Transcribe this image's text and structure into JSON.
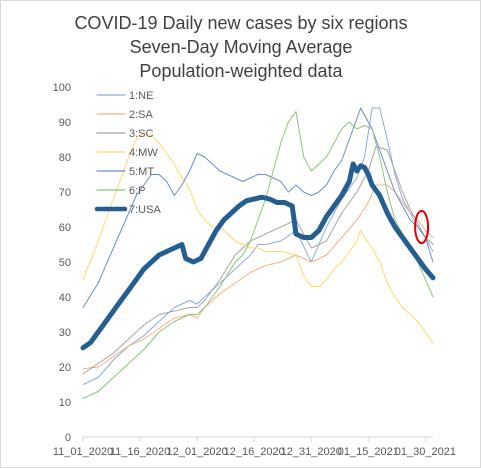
{
  "chart_data": {
    "type": "line",
    "title_lines": [
      "COVID-19 Daily new cases by six regions",
      "Seven-Day Moving Average",
      "Population-weighted data"
    ],
    "x_tick_labels": [
      "11_01_2020",
      "11_16_2020",
      "12_01_2020",
      "12_16_2020",
      "12_31_2020",
      "01_15_2021",
      "01_30_2021"
    ],
    "x_tick_days": [
      0,
      15,
      30,
      45,
      60,
      75,
      90
    ],
    "ylim": [
      0,
      100
    ],
    "y_ticks": [
      0,
      10,
      20,
      30,
      40,
      50,
      60,
      70,
      80,
      90,
      100
    ],
    "grid": false,
    "legend_position": "top-left",
    "series": [
      {
        "name": "1:NE",
        "color": "#8eaadb",
        "width": 1,
        "points": [
          [
            0,
            15
          ],
          [
            4,
            17
          ],
          [
            8,
            22
          ],
          [
            12,
            26
          ],
          [
            16,
            29
          ],
          [
            20,
            33
          ],
          [
            24,
            37
          ],
          [
            28,
            39
          ],
          [
            30,
            38
          ],
          [
            32,
            40
          ],
          [
            36,
            44
          ],
          [
            40,
            48
          ],
          [
            44,
            52
          ],
          [
            46,
            55
          ],
          [
            48,
            55
          ],
          [
            52,
            56
          ],
          [
            56,
            59
          ],
          [
            60,
            50
          ],
          [
            64,
            60
          ],
          [
            68,
            68
          ],
          [
            72,
            74
          ],
          [
            74,
            80
          ],
          [
            76,
            94
          ],
          [
            78,
            94
          ],
          [
            80,
            85
          ],
          [
            82,
            75
          ],
          [
            84,
            68
          ],
          [
            86,
            64
          ],
          [
            88,
            60
          ],
          [
            90,
            57
          ],
          [
            92,
            53
          ]
        ]
      },
      {
        "name": "2:SA",
        "color": "#f4b183",
        "width": 1,
        "points": [
          [
            0,
            19.5
          ],
          [
            4,
            20
          ],
          [
            8,
            23
          ],
          [
            12,
            26
          ],
          [
            16,
            28
          ],
          [
            20,
            31
          ],
          [
            24,
            34
          ],
          [
            28,
            35
          ],
          [
            30,
            34
          ],
          [
            32,
            37
          ],
          [
            36,
            41
          ],
          [
            40,
            44
          ],
          [
            44,
            47
          ],
          [
            48,
            49
          ],
          [
            52,
            50
          ],
          [
            56,
            52
          ],
          [
            60,
            50
          ],
          [
            64,
            52
          ],
          [
            68,
            57
          ],
          [
            72,
            62
          ],
          [
            75,
            67
          ],
          [
            77,
            72
          ],
          [
            80,
            72
          ],
          [
            82,
            70
          ],
          [
            84,
            67
          ],
          [
            86,
            64
          ],
          [
            88,
            62
          ],
          [
            90,
            59
          ],
          [
            92,
            57
          ]
        ]
      },
      {
        "name": "3:SC",
        "color": "#a5a5a5",
        "width": 1,
        "points": [
          [
            0,
            18
          ],
          [
            4,
            21
          ],
          [
            8,
            24
          ],
          [
            12,
            28
          ],
          [
            16,
            32
          ],
          [
            20,
            35
          ],
          [
            24,
            36
          ],
          [
            28,
            37
          ],
          [
            30,
            37
          ],
          [
            32,
            39
          ],
          [
            36,
            45
          ],
          [
            40,
            52
          ],
          [
            44,
            56
          ],
          [
            48,
            58
          ],
          [
            52,
            60
          ],
          [
            56,
            62
          ],
          [
            60,
            54
          ],
          [
            64,
            56
          ],
          [
            68,
            64
          ],
          [
            72,
            70
          ],
          [
            75,
            76
          ],
          [
            77,
            83
          ],
          [
            80,
            82
          ],
          [
            82,
            76
          ],
          [
            84,
            70
          ],
          [
            86,
            65
          ],
          [
            88,
            61
          ],
          [
            90,
            57
          ],
          [
            92,
            55
          ]
        ]
      },
      {
        "name": "4:MW",
        "color": "#ffd966",
        "width": 1,
        "points": [
          [
            0,
            45
          ],
          [
            4,
            56
          ],
          [
            8,
            68
          ],
          [
            12,
            80
          ],
          [
            14,
            85
          ],
          [
            16,
            87
          ],
          [
            18,
            86
          ],
          [
            20,
            84
          ],
          [
            22,
            81
          ],
          [
            24,
            78
          ],
          [
            26,
            74
          ],
          [
            28,
            71
          ],
          [
            30,
            65
          ],
          [
            32,
            62
          ],
          [
            34,
            60
          ],
          [
            36,
            60
          ],
          [
            38,
            58
          ],
          [
            40,
            56
          ],
          [
            42,
            55
          ],
          [
            44,
            54
          ],
          [
            46,
            54
          ],
          [
            48,
            53
          ],
          [
            52,
            53
          ],
          [
            56,
            52
          ],
          [
            58,
            46
          ],
          [
            60,
            43
          ],
          [
            62,
            43
          ],
          [
            64,
            45
          ],
          [
            66,
            48
          ],
          [
            68,
            50
          ],
          [
            70,
            53
          ],
          [
            72,
            56
          ],
          [
            73,
            59
          ],
          [
            74,
            57
          ],
          [
            76,
            54
          ],
          [
            78,
            50
          ],
          [
            80,
            44
          ],
          [
            82,
            40
          ],
          [
            84,
            37
          ],
          [
            86,
            35
          ],
          [
            88,
            33
          ],
          [
            90,
            30
          ],
          [
            92,
            27
          ]
        ]
      },
      {
        "name": "5:MT",
        "color": "#6a8ec9",
        "width": 1,
        "points": [
          [
            0,
            37
          ],
          [
            4,
            44
          ],
          [
            8,
            54
          ],
          [
            12,
            64
          ],
          [
            14,
            69
          ],
          [
            16,
            72
          ],
          [
            18,
            75
          ],
          [
            20,
            75
          ],
          [
            22,
            73
          ],
          [
            24,
            69
          ],
          [
            26,
            72
          ],
          [
            28,
            76
          ],
          [
            30,
            81
          ],
          [
            32,
            80
          ],
          [
            34,
            78
          ],
          [
            36,
            76
          ],
          [
            38,
            75
          ],
          [
            40,
            74
          ],
          [
            42,
            73
          ],
          [
            44,
            74
          ],
          [
            46,
            75
          ],
          [
            48,
            75
          ],
          [
            50,
            74
          ],
          [
            52,
            73
          ],
          [
            54,
            70
          ],
          [
            56,
            72
          ],
          [
            58,
            70
          ],
          [
            60,
            69
          ],
          [
            62,
            70
          ],
          [
            64,
            72
          ],
          [
            66,
            76
          ],
          [
            68,
            79
          ],
          [
            70,
            85
          ],
          [
            72,
            91
          ],
          [
            73,
            94
          ],
          [
            74,
            92
          ],
          [
            76,
            88
          ],
          [
            78,
            82
          ],
          [
            80,
            76
          ],
          [
            82,
            70
          ],
          [
            84,
            66
          ],
          [
            86,
            62
          ],
          [
            88,
            60
          ],
          [
            90,
            57
          ],
          [
            92,
            50
          ]
        ]
      },
      {
        "name": "6:P",
        "color": "#8cc576",
        "width": 1,
        "points": [
          [
            0,
            11
          ],
          [
            4,
            13
          ],
          [
            8,
            17
          ],
          [
            12,
            21
          ],
          [
            16,
            25
          ],
          [
            20,
            30
          ],
          [
            24,
            33
          ],
          [
            28,
            35
          ],
          [
            30,
            35
          ],
          [
            32,
            37
          ],
          [
            36,
            43
          ],
          [
            40,
            50
          ],
          [
            42,
            52
          ],
          [
            44,
            56
          ],
          [
            46,
            62
          ],
          [
            48,
            68
          ],
          [
            50,
            76
          ],
          [
            52,
            84
          ],
          [
            54,
            90
          ],
          [
            56,
            93
          ],
          [
            58,
            80
          ],
          [
            60,
            76
          ],
          [
            62,
            78
          ],
          [
            64,
            80
          ],
          [
            66,
            84
          ],
          [
            68,
            88
          ],
          [
            70,
            90
          ],
          [
            72,
            88
          ],
          [
            74,
            89
          ],
          [
            76,
            88
          ],
          [
            78,
            80
          ],
          [
            80,
            70
          ],
          [
            82,
            62
          ],
          [
            84,
            58
          ],
          [
            86,
            54
          ],
          [
            88,
            50
          ],
          [
            90,
            45
          ],
          [
            92,
            40
          ]
        ]
      },
      {
        "name": "7:USA",
        "color": "#255e91",
        "width": 5,
        "points": [
          [
            0,
            25.5
          ],
          [
            2,
            27
          ],
          [
            4,
            30
          ],
          [
            6,
            33
          ],
          [
            8,
            36
          ],
          [
            10,
            39
          ],
          [
            12,
            42
          ],
          [
            14,
            45
          ],
          [
            16,
            48
          ],
          [
            18,
            50
          ],
          [
            20,
            52
          ],
          [
            22,
            53
          ],
          [
            24,
            54
          ],
          [
            26,
            55
          ],
          [
            27,
            51
          ],
          [
            29,
            50
          ],
          [
            31,
            51
          ],
          [
            33,
            55
          ],
          [
            35,
            59
          ],
          [
            37,
            62
          ],
          [
            39,
            64
          ],
          [
            41,
            66
          ],
          [
            43,
            67.5
          ],
          [
            45,
            68
          ],
          [
            47,
            68.5
          ],
          [
            49,
            68
          ],
          [
            51,
            67
          ],
          [
            53,
            67
          ],
          [
            55,
            66
          ],
          [
            56,
            58
          ],
          [
            58,
            57
          ],
          [
            60,
            57
          ],
          [
            62,
            59
          ],
          [
            64,
            63
          ],
          [
            66,
            66
          ],
          [
            68,
            69
          ],
          [
            70,
            73
          ],
          [
            71,
            78
          ],
          [
            72,
            76
          ],
          [
            73,
            77.5
          ],
          [
            74,
            77
          ],
          [
            75,
            75
          ],
          [
            76,
            72
          ],
          [
            78,
            69
          ],
          [
            80,
            64
          ],
          [
            82,
            60
          ],
          [
            84,
            57
          ],
          [
            86,
            54
          ],
          [
            88,
            51
          ],
          [
            90,
            48
          ],
          [
            92,
            45.5
          ]
        ]
      }
    ],
    "annotations": [
      {
        "shape": "ellipse",
        "color": "#e00000",
        "x_day": 89,
        "y": 60,
        "rx_day": 1.7,
        "ry_value": 4.6
      }
    ]
  }
}
